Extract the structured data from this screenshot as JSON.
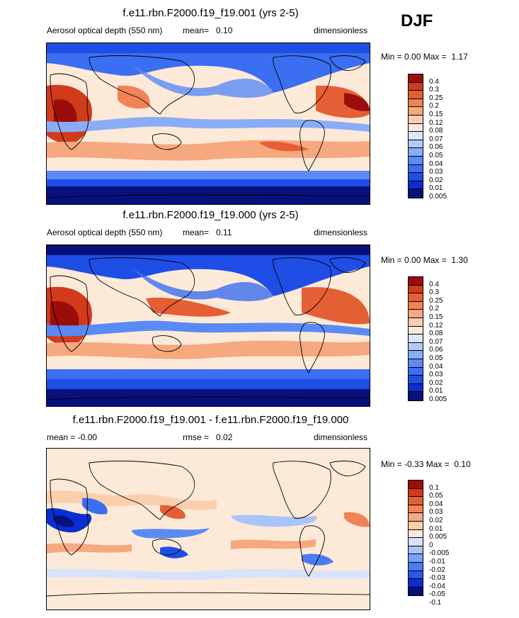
{
  "season": "DJF",
  "colors": {
    "seq": [
      "#08107a",
      "#0a2fd0",
      "#1f4ee6",
      "#3b6ef0",
      "#5a8af5",
      "#8aacf7",
      "#b3cbfa",
      "#dbe7fd",
      "#fde9d8",
      "#fbcfae",
      "#f6a87f",
      "#f08456",
      "#e55f34",
      "#d23a1c",
      "#9b0d0a"
    ],
    "diff": [
      "#08107a",
      "#0a2fd0",
      "#2a58e8",
      "#4b7bf2",
      "#7ba0f6",
      "#a9c4fa",
      "#d5e3fc",
      "#fde9d8",
      "#fbcfae",
      "#f6a87f",
      "#f08456",
      "#e55f34",
      "#d23a1c",
      "#9b0d0a"
    ]
  },
  "panels": [
    {
      "title": "f.e11.rbn.F2000.f19_f19.001 (yrs 2-5)",
      "left_text": "Aerosol optical depth (550 nm)",
      "mid_label": "mean=",
      "mid_value": "0.10",
      "right_text": "dimensionless",
      "min_label": "Min =",
      "min_value": "0.00",
      "max_label": "Max =",
      "max_value": "1.17",
      "levels": [
        "0.4",
        "0.3",
        "0.25",
        "0.2",
        "0.15",
        "0.12",
        "0.08",
        "0.07",
        "0.06",
        "0.05",
        "0.04",
        "0.03",
        "0.02",
        "0.01",
        "0.005"
      ]
    },
    {
      "title": "f.e11.rbn.F2000.f19_f19.000 (yrs 2-5)",
      "left_text": "Aerosol optical depth (550 nm)",
      "mid_label": "mean=",
      "mid_value": "0.11",
      "right_text": "dimensionless",
      "min_label": "Min =",
      "min_value": "0.00",
      "max_label": "Max =",
      "max_value": "1.30",
      "levels": [
        "0.4",
        "0.3",
        "0.25",
        "0.2",
        "0.15",
        "0.12",
        "0.08",
        "0.07",
        "0.06",
        "0.05",
        "0.04",
        "0.03",
        "0.02",
        "0.01",
        "0.005"
      ]
    },
    {
      "title": "f.e11.rbn.F2000.f19_f19.001 - f.e11.rbn.F2000.f19_f19.000",
      "left_text": "mean = -0.00",
      "mid_label": "rmse =",
      "mid_value": "0.02",
      "right_text": "dimensionless",
      "min_label": "Min =",
      "min_value": "-0.33",
      "max_label": "Max =",
      "max_value": "0.10",
      "levels": [
        "0.1",
        "0.05",
        "0.04",
        "0.03",
        "0.02",
        "0.01",
        "0.005",
        "0",
        "-0.005",
        "-0.01",
        "-0.02",
        "-0.03",
        "-0.04",
        "-0.05",
        "-0.1"
      ]
    }
  ]
}
